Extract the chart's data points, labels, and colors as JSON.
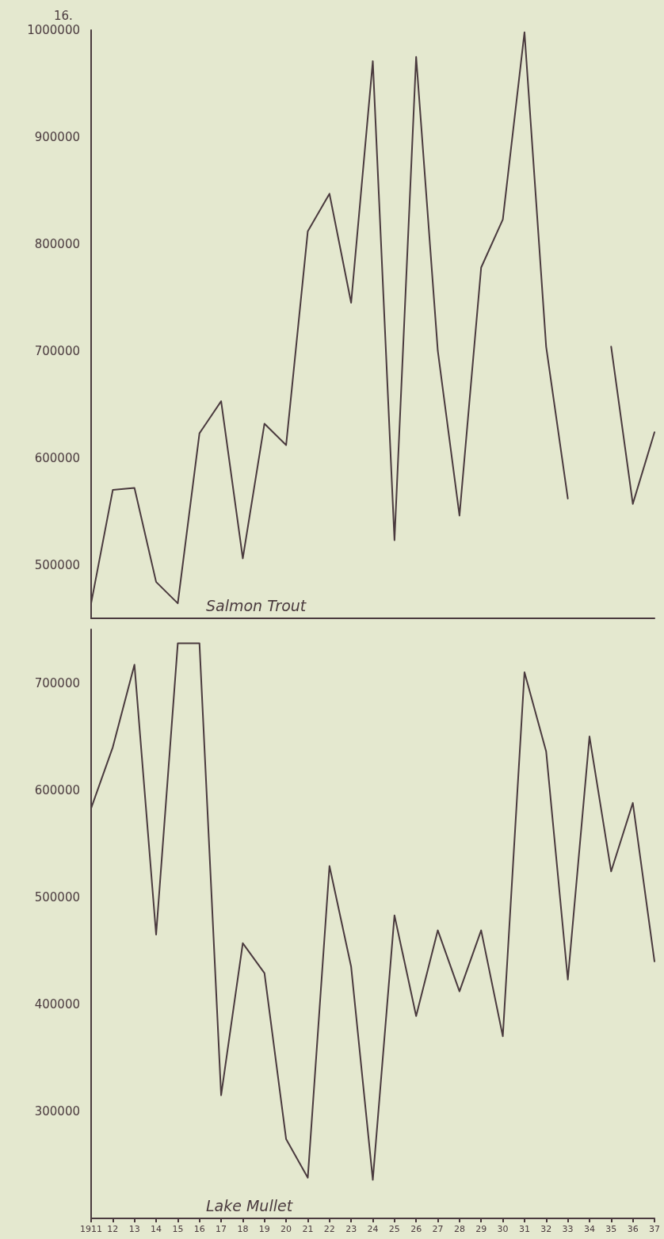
{
  "chart_data": [
    {
      "type": "line",
      "title": "Salmon Trout",
      "annotations": [
        "16."
      ],
      "categories": [
        "1911",
        "12",
        "13",
        "14",
        "15",
        "16",
        "17",
        "18",
        "19",
        "20",
        "21",
        "22",
        "23",
        "24",
        "25",
        "26",
        "27",
        "28",
        "29",
        "30",
        "31",
        "32",
        "33",
        "34",
        "35",
        "36",
        "37"
      ],
      "series": [
        {
          "color": "#4a3a3e",
          "values": [
            464000,
            570000,
            572000,
            484000,
            464000,
            623000,
            653000,
            506000,
            632000,
            612000,
            812000,
            847000,
            745000,
            971000,
            523000,
            975000,
            700000,
            546000,
            778000,
            823000,
            998000,
            704000,
            562000,
            null,
            704000,
            557000,
            624000
          ]
        }
      ],
      "ylim": [
        450000,
        1000000
      ],
      "yticks": [
        500000,
        600000,
        700000,
        800000,
        900000,
        1000000
      ],
      "grid": false,
      "tick_labels": "y",
      "marker": "none",
      "line_style": "solid"
    },
    {
      "type": "line",
      "title": "Lake Mullet",
      "categories": [
        "1911",
        "12",
        "13",
        "14",
        "15",
        "16",
        "17",
        "18",
        "19",
        "20",
        "21",
        "22",
        "23",
        "24",
        "25",
        "26",
        "27",
        "28",
        "29",
        "30",
        "31",
        "32",
        "33",
        "34",
        "35",
        "36",
        "37"
      ],
      "series": [
        {
          "color": "#4a3a3e",
          "values": [
            583000,
            640000,
            717000,
            465000,
            737000,
            737000,
            315000,
            457000,
            429000,
            274000,
            238000,
            529000,
            435000,
            236000,
            483000,
            389000,
            469000,
            412000,
            469000,
            370000,
            710000,
            636000,
            423000,
            650000,
            524000,
            588000,
            440000
          ]
        }
      ],
      "ylim": [
        200000,
        750000
      ],
      "yticks": [
        300000,
        400000,
        500000,
        600000,
        700000
      ],
      "grid": false,
      "marker": "none",
      "line_style": "solid"
    }
  ]
}
